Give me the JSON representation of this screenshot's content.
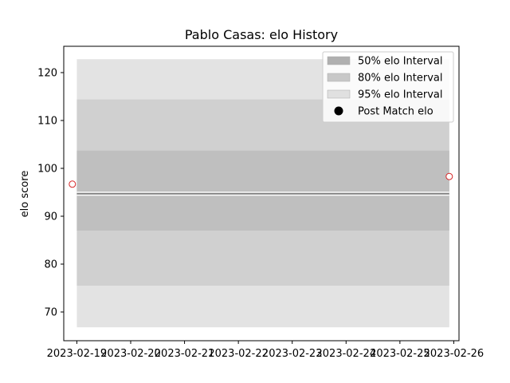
{
  "chart_data": {
    "type": "line",
    "title": "Pablo Casas: elo History",
    "xlabel": "",
    "ylabel": "elo score",
    "x_ticks": [
      "2023-02-19",
      "2023-02-20",
      "2023-02-21",
      "2023-02-22",
      "2023-02-23",
      "2023-02-24",
      "2023-02-25",
      "2023-02-26"
    ],
    "y_ticks": [
      70,
      80,
      90,
      100,
      110,
      120
    ],
    "xlim": [
      "2023-02-18 18:10",
      "2023-02-26 02:20"
    ],
    "ylim": [
      64.0,
      125.5
    ],
    "band_span": [
      "2023-02-19",
      "2023-02-25 22:00"
    ],
    "bands": [
      {
        "name": "95% elo Interval",
        "lower": 66.8,
        "upper": 122.8,
        "color": "#e3e3e3"
      },
      {
        "name": "80% elo Interval",
        "lower": 75.5,
        "upper": 114.4,
        "color": "#d0d0d0"
      },
      {
        "name": "50% elo Interval",
        "lower": 87.0,
        "upper": 103.7,
        "color": "#bfbfbf"
      }
    ],
    "series": [
      {
        "name": "",
        "x": [
          "2023-02-19",
          "2023-02-25 22:00"
        ],
        "values": [
          94.7,
          94.7
        ],
        "color": "#808080"
      },
      {
        "name": "Post Match elo",
        "x": [
          "2023-02-18 22:00",
          "2023-02-25 22:00"
        ],
        "values": [
          96.7,
          98.3
        ],
        "marker_edge": "#d62728"
      }
    ],
    "legend": {
      "position": "top-right",
      "entries": [
        {
          "label": "50% elo Interval",
          "kind": "patch",
          "color": "#b0b0b0"
        },
        {
          "label": "80% elo Interval",
          "kind": "patch",
          "color": "#c8c8c8"
        },
        {
          "label": "95% elo Interval",
          "kind": "patch",
          "color": "#e0e0e0"
        },
        {
          "label": "Post Match elo",
          "kind": "marker",
          "color": "#000000"
        }
      ]
    },
    "grid": false
  }
}
